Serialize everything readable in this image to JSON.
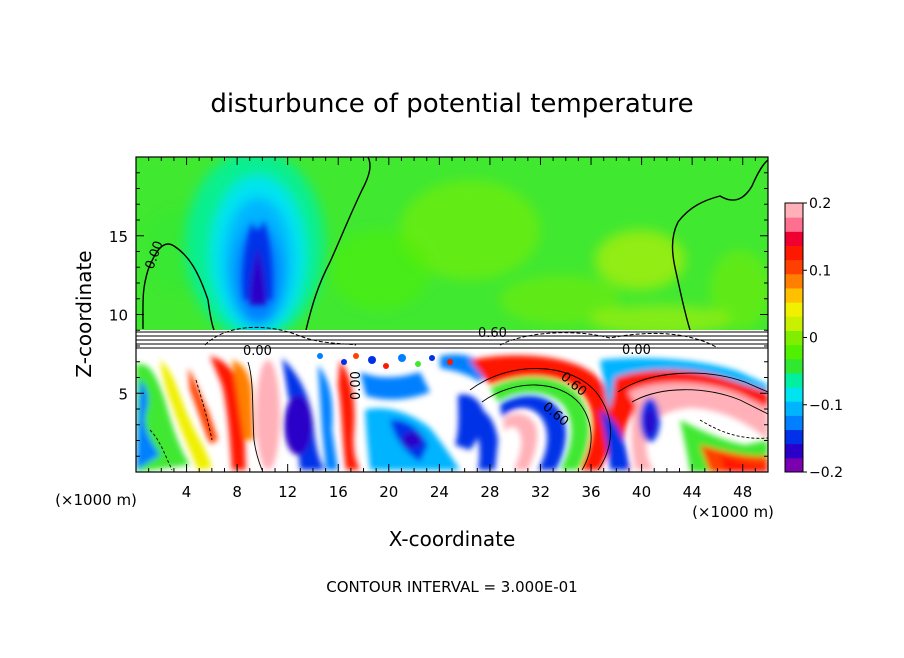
{
  "chart_data": {
    "type": "heatmap",
    "title": "disturbunce of potential temperature",
    "xlabel": "X-coordinate",
    "ylabel": "Z-coordinate",
    "x_unit_label": "(×1000 m)",
    "x_unit_label_right": "(×1000 m)",
    "footer": "CONTOUR INTERVAL = 3.000E-01",
    "xlim": [
      0,
      50
    ],
    "ylim": [
      0,
      20
    ],
    "x_ticks": [
      4,
      8,
      12,
      16,
      20,
      24,
      28,
      32,
      36,
      40,
      44,
      48
    ],
    "x_tick_labels": [
      "4",
      "8",
      "12",
      "16",
      "20",
      "24",
      "28",
      "32",
      "36",
      "40",
      "44",
      "48"
    ],
    "y_ticks": [
      5,
      10,
      15
    ],
    "y_tick_labels": [
      "5",
      "10",
      "15"
    ],
    "colorbar": {
      "min": -0.2,
      "max": 0.2,
      "ticks": [
        0.2,
        0.1,
        0,
        -0.1,
        -0.2
      ],
      "tick_labels": [
        "0.2",
        "0.1",
        "0",
        "−0.1",
        "−0.2"
      ],
      "colors": [
        "#7a00b0",
        "#2a00c8",
        "#0030e8",
        "#0080ff",
        "#00b4ff",
        "#00e4f0",
        "#00f0a0",
        "#30e830",
        "#50f000",
        "#80ee00",
        "#c8f000",
        "#f0f000",
        "#ffc000",
        "#ff8000",
        "#ff4000",
        "#ff1800",
        "#f00030",
        "#ff7090",
        "#ffb0b8"
      ]
    },
    "contour_labels": [
      "0.00",
      "0.60",
      "0.00",
      "0.00",
      "0.60",
      "0.60",
      "0.00"
    ],
    "regions": {
      "upper_background": "#40e830",
      "plume_color": "#0030e8",
      "lower_layer_top_km": 7.5,
      "stable_band_km": [
        7.8,
        9.0
      ]
    }
  }
}
